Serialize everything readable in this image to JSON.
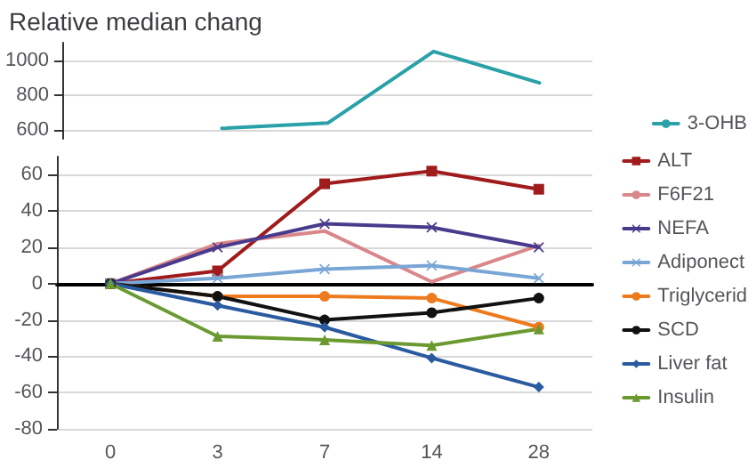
{
  "chart_data": [
    {
      "type": "line",
      "title": "Relative median chang",
      "categories": [
        "0",
        "3",
        "7",
        "14",
        "28"
      ],
      "series": [
        {
          "name": "3-OHB",
          "color": "#2aa0a8",
          "values": [
            null,
            610,
            640,
            1050,
            870
          ],
          "marker": "none"
        }
      ],
      "ylim": [
        550,
        1100
      ],
      "yticks": [
        600,
        800,
        1000
      ],
      "grid": "y",
      "tick_labels": "y",
      "legend": "bottom right"
    },
    {
      "type": "line",
      "categories": [
        "0",
        "3",
        "7",
        "14",
        "28"
      ],
      "series": [
        {
          "name": "ALT",
          "color": "#a01c1c",
          "values": [
            0,
            7,
            55,
            62,
            52
          ],
          "marker": "square"
        },
        {
          "name": "F6F21",
          "color": "#d9878a",
          "values": [
            0,
            22,
            29,
            1,
            21
          ],
          "marker": "none"
        },
        {
          "name": "NEFA",
          "color": "#4a3a8c",
          "values": [
            0,
            20,
            33,
            31,
            20
          ],
          "marker": "cross"
        },
        {
          "name": "Adiponect",
          "color": "#7aa6d6",
          "values": [
            0,
            3,
            8,
            10,
            3
          ],
          "marker": "cross"
        },
        {
          "name": "Triglycerid",
          "color": "#ee7a1e",
          "values": [
            0,
            -7,
            -7,
            -8,
            -24
          ],
          "marker": "circle"
        },
        {
          "name": "SCD",
          "color": "#111111",
          "values": [
            0,
            -7,
            -20,
            -16,
            -8
          ],
          "marker": "circle"
        },
        {
          "name": "Liver fat",
          "color": "#2a5aa0",
          "values": [
            0,
            -12,
            -24,
            -41,
            -57
          ],
          "marker": "diamond"
        },
        {
          "name": "Insulin",
          "color": "#6a9a30",
          "values": [
            0,
            -29,
            -31,
            -34,
            -25
          ],
          "marker": "triangle"
        }
      ],
      "ylim": [
        -80,
        70
      ],
      "yticks": [
        -80,
        -60,
        -40,
        -20,
        0,
        20,
        40,
        60
      ],
      "grid": "y",
      "legend": "right"
    }
  ]
}
